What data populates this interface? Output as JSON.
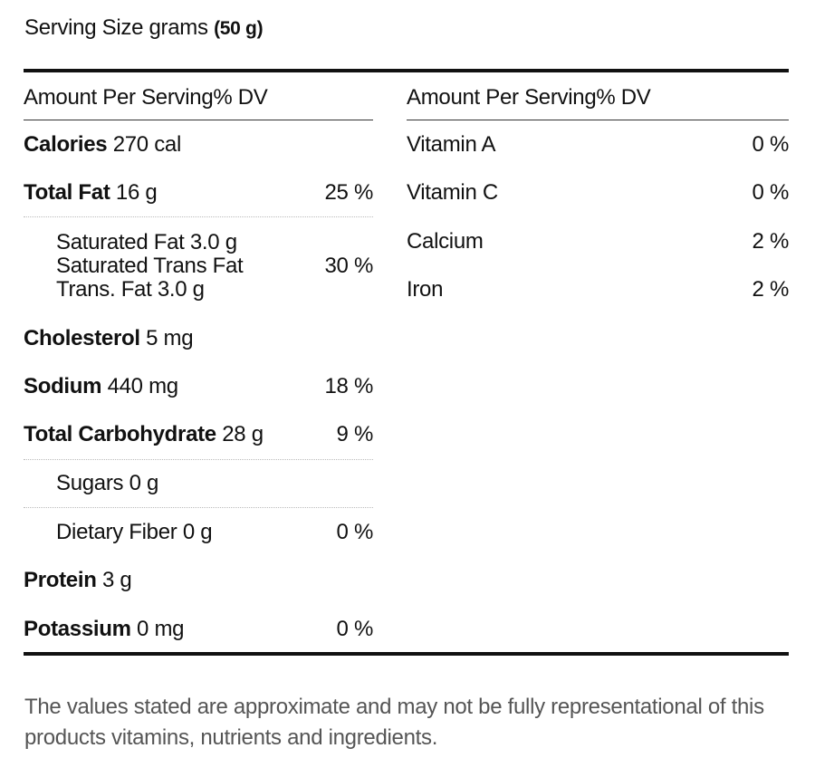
{
  "serving": {
    "label": "Serving Size grams",
    "value": "(50 g)"
  },
  "left": {
    "header": "Amount Per Serving% DV",
    "rows": [
      {
        "name": "Calories",
        "amount": "270 cal",
        "dv": ""
      },
      {
        "name": "Total Fat",
        "amount": "16 g",
        "dv": "25 %"
      },
      {
        "lines": [
          "Saturated Fat 3.0 g",
          "Saturated Trans Fat",
          "Trans. Fat 3.0 g"
        ],
        "dv": "30 %"
      },
      {
        "name": "Cholesterol",
        "amount": "5 mg",
        "dv": ""
      },
      {
        "name": "Sodium",
        "amount": "440 mg",
        "dv": "18 %"
      },
      {
        "name": "Total Carbohydrate",
        "amount": "28 g",
        "dv": "9 %"
      },
      {
        "text": "Sugars 0 g",
        "dv": ""
      },
      {
        "text": "Dietary Fiber 0 g",
        "dv": "0 %"
      },
      {
        "name": "Protein",
        "amount": "3 g",
        "dv": ""
      },
      {
        "name": "Potassium",
        "amount": "0 mg",
        "dv": "0 %"
      }
    ]
  },
  "right": {
    "header": "Amount Per Serving% DV",
    "rows": [
      {
        "text": "Vitamin A",
        "dv": "0 %"
      },
      {
        "text": "Vitamin C",
        "dv": "0 %"
      },
      {
        "text": "Calcium",
        "dv": "2 %"
      },
      {
        "text": "Iron",
        "dv": "2 %"
      }
    ]
  },
  "footnote": "The values stated are approximate and may not be fully representational of this products vitamins, nutrients and ingredients."
}
